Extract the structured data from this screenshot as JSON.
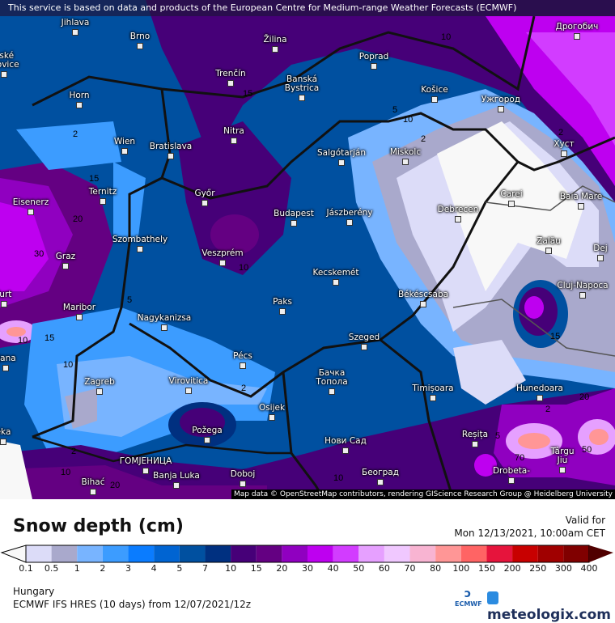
{
  "banner": "This service is based on data and products of the European Centre for Medium-range Weather Forecasts (ECMWF)",
  "attribution": "Map data © OpenStreetMap contributors, rendering GIScience Research Group @ Heidelberg University",
  "title": "Snow depth (cm)",
  "valid_label": "Valid for",
  "valid_time": "Mon 12/13/2021, 10:00am CET",
  "region": "Hungary",
  "model": "ECMWF IFS HRES (10 days) from  12/07/2021/12z",
  "logos": {
    "ecmwf": "ECMWF",
    "meteologix": "meteologix.com"
  },
  "legend": {
    "ticks": [
      "0.1",
      "0.5",
      "1",
      "2",
      "3",
      "4",
      "5",
      "7",
      "10",
      "15",
      "20",
      "30",
      "40",
      "50",
      "60",
      "70",
      "80",
      "100",
      "150",
      "200",
      "250",
      "300",
      "400"
    ],
    "colors": [
      "#dcdcf8",
      "#a9a9cc",
      "#78b4ff",
      "#3c9cff",
      "#0a7cff",
      "#0064d2",
      "#0050a0",
      "#003080",
      "#460078",
      "#640082",
      "#9000c0",
      "#be00f0",
      "#d23cff",
      "#e6a0ff",
      "#f0c8ff",
      "#f8b4d2",
      "#ff9696",
      "#ff6464",
      "#e6143c",
      "#c80000",
      "#a00000",
      "#800000"
    ],
    "under_color": "#f8f8f8",
    "over_color": "#500000"
  },
  "cities": [
    "Jihlava",
    "Brno",
    "Žilina",
    "eské\nějovice",
    "Trenčín",
    "Poprad",
    "Banská\nBystrica",
    "Košice",
    "Дрогобич",
    "Horn",
    "Wien",
    "Bratislava",
    "Nitra",
    "Ужгород",
    "Salgótarján",
    "Miskolc",
    "Хуст",
    "Ternitz",
    "Eisenerz",
    "Győr",
    "Budapest",
    "Jászberény",
    "Debrecen",
    "Carei",
    "Baia Mare",
    "Szombathely",
    "Graz",
    "Veszprém",
    "Zalău",
    "Dej",
    "furt",
    "Maribor",
    "Paks",
    "Kecskemét",
    "Békéscsaba",
    "Cluj-Napoca",
    "Nagykanizsa",
    "Szeged",
    "ljana",
    "Pécs",
    "Zagreb",
    "Virovitica",
    "Бачка\nТопола",
    "Timișoara",
    "Hunedoara",
    "Osijek",
    "eka",
    "Požega",
    "Нови Сад",
    "Reșița",
    "Târgu\nJiu",
    "ГОМЈЕНИЦА",
    "Bihać",
    "Banja Luka",
    "Doboj",
    "Београд",
    "Drobeta-"
  ],
  "contour_labels": [
    "10",
    "5",
    "2",
    "2",
    "15",
    "20",
    "30",
    "10",
    "10",
    "5",
    "2",
    "15",
    "10",
    "2",
    "2",
    "10",
    "15",
    "5",
    "70",
    "50",
    "20",
    "2",
    "15",
    "10",
    "20",
    "10"
  ]
}
